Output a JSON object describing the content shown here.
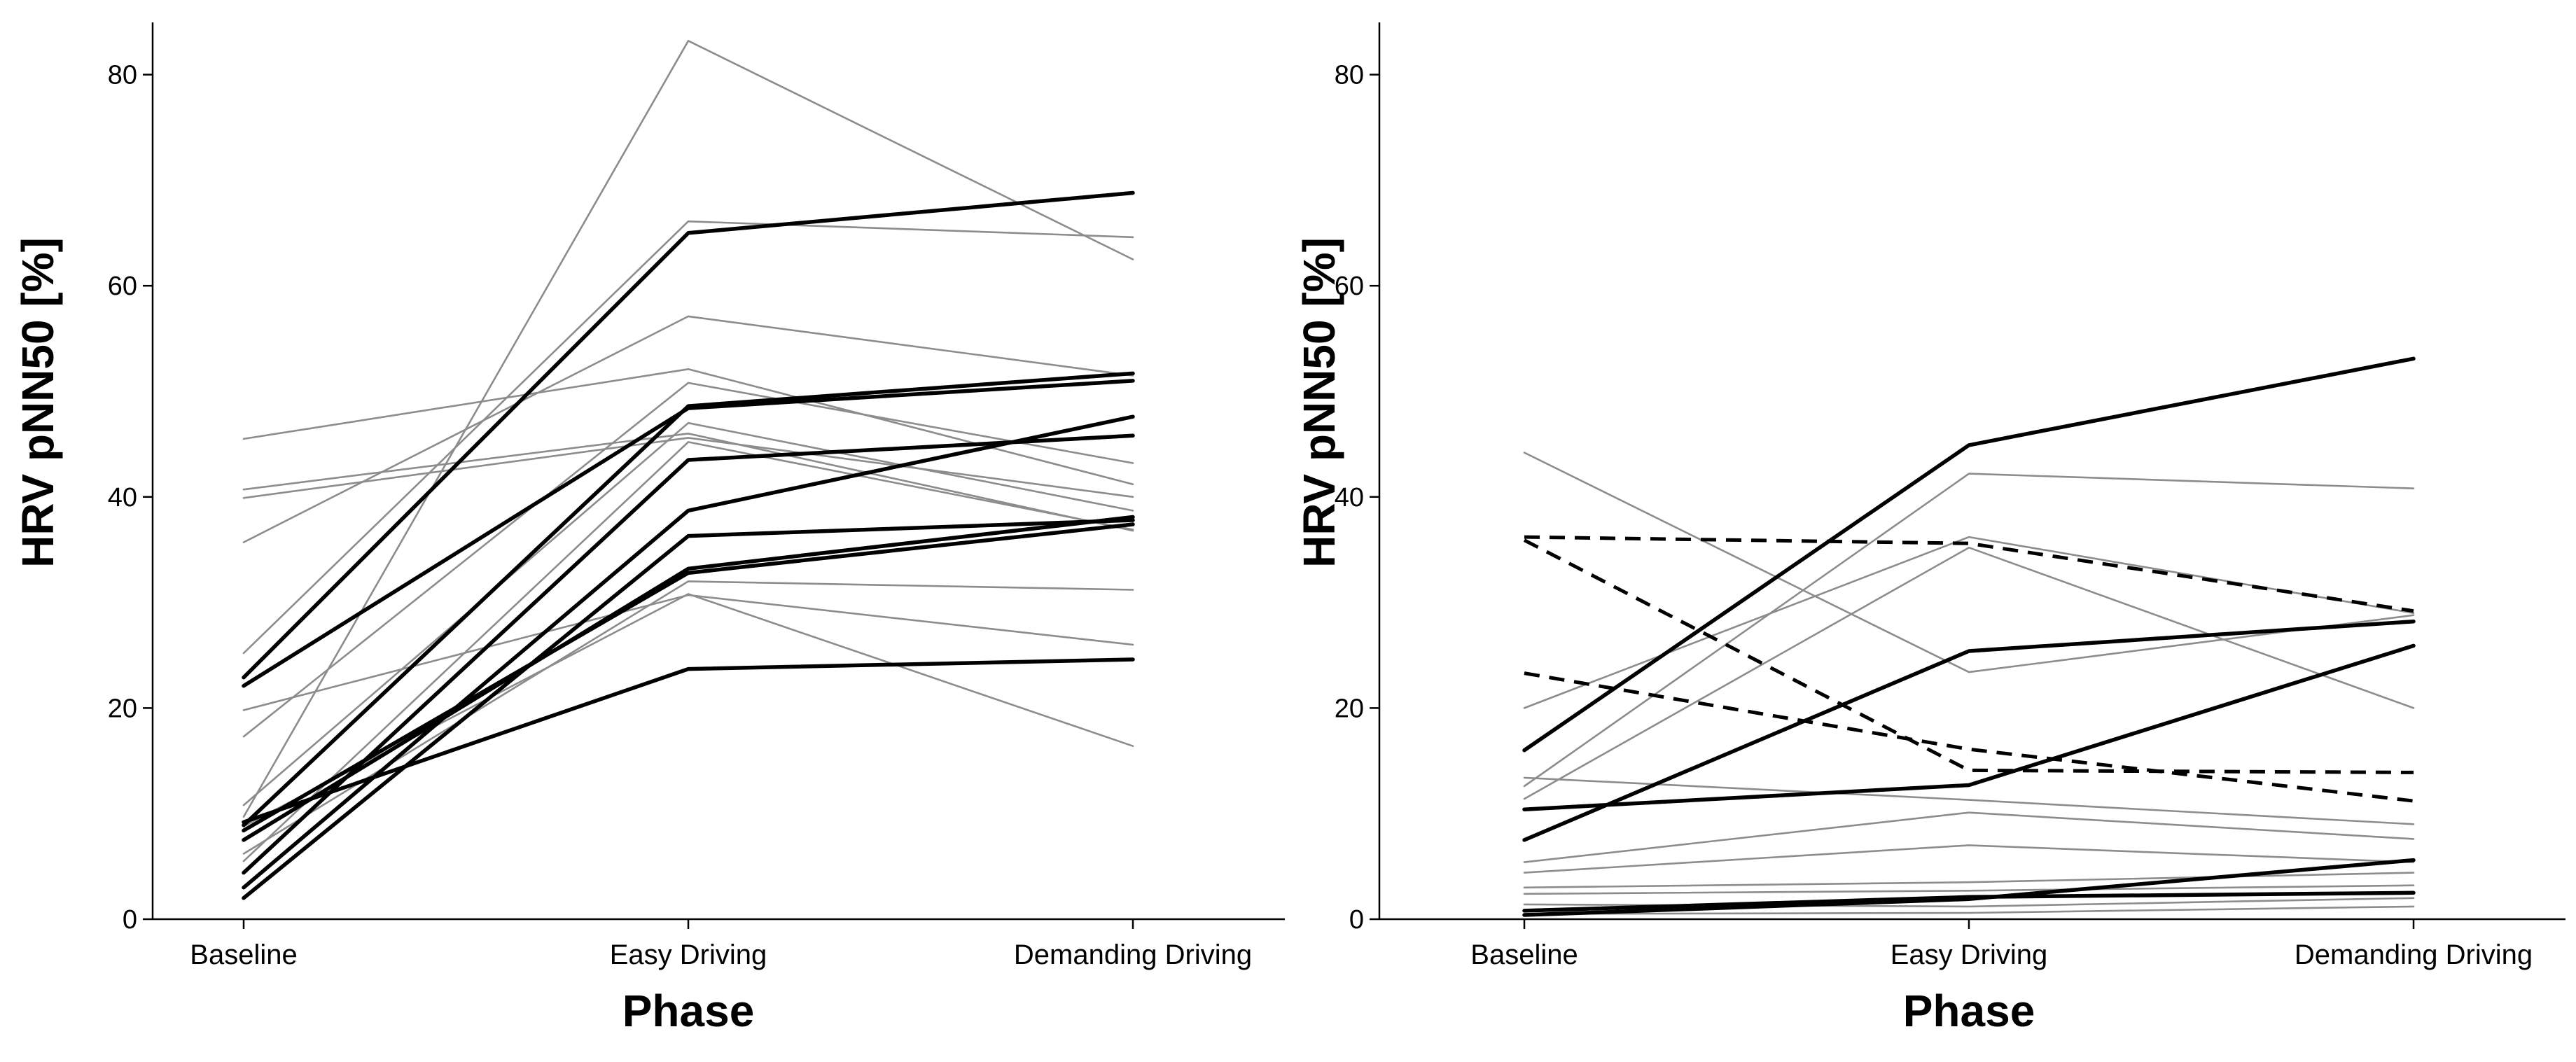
{
  "chart_data": [
    {
      "type": "line",
      "panel": "left",
      "title": "",
      "xlabel": "Phase",
      "ylabel": "HRV pNN50 [%]",
      "categories": [
        "Baseline",
        "Easy Driving",
        "Demanding Driving"
      ],
      "yticks": [
        0,
        20,
        40,
        60,
        80
      ],
      "ylim": [
        0,
        85
      ],
      "grid": false,
      "series": [
        {
          "name": "thin-1",
          "style": "thin",
          "values": [
            9.7,
            83.2,
            62.5
          ]
        },
        {
          "name": "thin-2",
          "style": "thin",
          "values": [
            25.2,
            66.1,
            64.6
          ]
        },
        {
          "name": "thin-3",
          "style": "thin",
          "values": [
            45.5,
            52.1,
            41.2
          ]
        },
        {
          "name": "thin-4",
          "style": "thin",
          "values": [
            40.7,
            46.0,
            36.8
          ]
        },
        {
          "name": "thin-5",
          "style": "thin",
          "values": [
            39.9,
            45.6,
            40.0
          ]
        },
        {
          "name": "thin-6",
          "style": "thin",
          "values": [
            35.7,
            57.1,
            51.5
          ]
        },
        {
          "name": "thin-7",
          "style": "thin",
          "values": [
            19.8,
            30.7,
            26.0
          ]
        },
        {
          "name": "thin-8",
          "style": "thin",
          "values": [
            17.3,
            50.8,
            43.2
          ]
        },
        {
          "name": "thin-9",
          "style": "thin",
          "values": [
            10.8,
            47.0,
            38.7
          ]
        },
        {
          "name": "thin-10",
          "style": "thin",
          "values": [
            6.2,
            32.0,
            31.2
          ]
        },
        {
          "name": "thin-11",
          "style": "thin",
          "values": [
            8.8,
            30.8,
            16.4
          ]
        },
        {
          "name": "thin-12",
          "style": "thin",
          "values": [
            5.5,
            45.2,
            36.9
          ]
        },
        {
          "name": "bold-1",
          "style": "bold",
          "values": [
            22.9,
            65.0,
            68.8
          ]
        },
        {
          "name": "bold-2",
          "style": "bold",
          "values": [
            22.1,
            48.4,
            51.0
          ]
        },
        {
          "name": "bold-3",
          "style": "bold",
          "values": [
            8.9,
            48.6,
            51.7
          ]
        },
        {
          "name": "bold-4",
          "style": "bold",
          "values": [
            4.4,
            43.5,
            45.8
          ]
        },
        {
          "name": "bold-5",
          "style": "bold",
          "values": [
            3.0,
            38.7,
            47.6
          ]
        },
        {
          "name": "bold-6",
          "style": "bold",
          "values": [
            2.0,
            36.3,
            37.8
          ]
        },
        {
          "name": "bold-7",
          "style": "bold",
          "values": [
            7.5,
            33.2,
            38.1
          ]
        },
        {
          "name": "bold-8",
          "style": "bold",
          "values": [
            8.4,
            32.8,
            37.4
          ]
        },
        {
          "name": "bold-9",
          "style": "bold",
          "values": [
            9.2,
            23.7,
            24.6
          ]
        }
      ]
    },
    {
      "type": "line",
      "panel": "right",
      "title": "",
      "xlabel": "Phase",
      "ylabel": "HRV pNN50 [%]",
      "categories": [
        "Baseline",
        "Easy Driving",
        "Demanding Driving"
      ],
      "yticks": [
        0,
        20,
        40,
        60,
        80
      ],
      "ylim": [
        0,
        85
      ],
      "grid": false,
      "series": [
        {
          "name": "thin-1",
          "style": "thin",
          "values": [
            44.2,
            23.4,
            28.8
          ]
        },
        {
          "name": "thin-2",
          "style": "thin",
          "values": [
            12.6,
            42.2,
            40.8
          ]
        },
        {
          "name": "thin-3",
          "style": "thin",
          "values": [
            20.0,
            36.2,
            29.0
          ]
        },
        {
          "name": "thin-4",
          "style": "thin",
          "values": [
            11.4,
            35.2,
            20.0
          ]
        },
        {
          "name": "thin-5",
          "style": "thin",
          "values": [
            13.4,
            11.3,
            9.0
          ]
        },
        {
          "name": "thin-6",
          "style": "thin",
          "values": [
            5.4,
            10.1,
            7.6
          ]
        },
        {
          "name": "thin-7",
          "style": "thin",
          "values": [
            4.4,
            7.0,
            5.4
          ]
        },
        {
          "name": "thin-8",
          "style": "thin",
          "values": [
            3.0,
            3.5,
            4.4
          ]
        },
        {
          "name": "thin-9",
          "style": "thin",
          "values": [
            2.4,
            2.7,
            3.2
          ]
        },
        {
          "name": "thin-10",
          "style": "thin",
          "values": [
            1.4,
            1.2,
            2.0
          ]
        },
        {
          "name": "thin-11",
          "style": "thin",
          "values": [
            0.5,
            0.6,
            1.2
          ]
        },
        {
          "name": "bold-1",
          "style": "bold",
          "values": [
            16.0,
            44.9,
            53.1
          ]
        },
        {
          "name": "bold-2",
          "style": "bold",
          "values": [
            7.5,
            25.4,
            28.2
          ]
        },
        {
          "name": "bold-3",
          "style": "bold",
          "values": [
            10.4,
            12.7,
            25.9
          ]
        },
        {
          "name": "bold-4",
          "style": "bold",
          "values": [
            0.4,
            1.9,
            5.6
          ]
        },
        {
          "name": "bold-5",
          "style": "bold",
          "values": [
            0.8,
            2.1,
            2.5
          ]
        },
        {
          "name": "dashed-1",
          "style": "dashed",
          "values": [
            36.2,
            35.6,
            29.2
          ]
        },
        {
          "name": "dashed-2",
          "style": "dashed",
          "values": [
            35.9,
            14.1,
            13.9
          ]
        },
        {
          "name": "dashed-3",
          "style": "dashed",
          "values": [
            23.3,
            16.1,
            11.2
          ]
        }
      ]
    }
  ]
}
